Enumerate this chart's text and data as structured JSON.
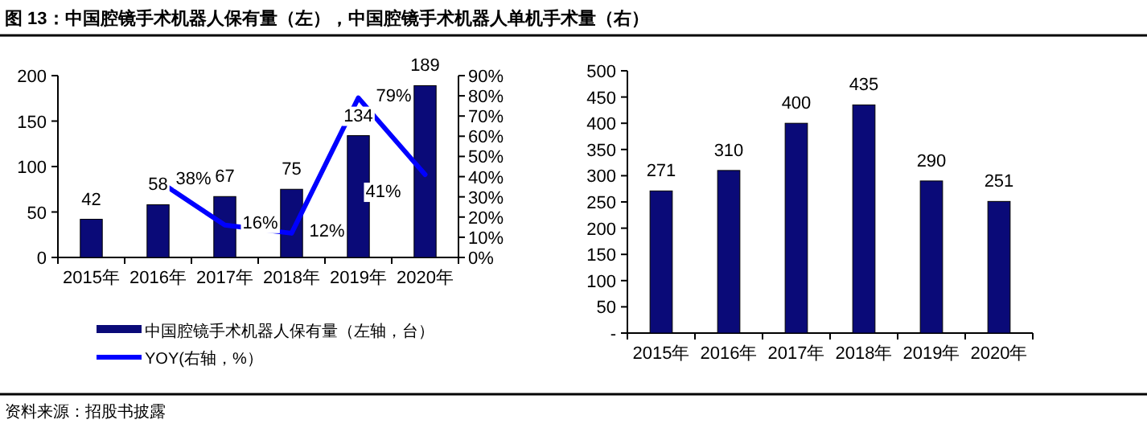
{
  "chart_data": [
    {
      "type": "bar",
      "title": "图 13：中国腔镜手术机器人保有量（左），中国腔镜手术机器人单机手术量（右）",
      "categories": [
        "2015年",
        "2016年",
        "2017年",
        "2018年",
        "2019年",
        "2020年"
      ],
      "series": [
        {
          "name": "中国腔镜手术机器人保有量（左轴，台）",
          "color": "#0a0a78",
          "values": [
            42,
            58,
            67,
            75,
            134,
            189
          ],
          "value_labels": [
            "42",
            "58",
            "67",
            "75",
            "134",
            "189"
          ]
        },
        {
          "name": "YOY(右轴，%）",
          "type": "line",
          "axis": "y2",
          "color": "#0000ff",
          "values": [
            null,
            38,
            16,
            12,
            79,
            41
          ],
          "value_labels": [
            null,
            "38%",
            "16%",
            "12%",
            "79%",
            "41%"
          ]
        }
      ],
      "ylim": [
        0,
        200
      ],
      "yticks": [
        0,
        50,
        100,
        150,
        200
      ],
      "y2lim": [
        0,
        90
      ],
      "y2ticks": [
        {
          "value": 0,
          "label": "0%"
        },
        {
          "value": 10,
          "label": "10%"
        },
        {
          "value": 20,
          "label": "20%"
        },
        {
          "value": 30,
          "label": "30%"
        },
        {
          "value": 40,
          "label": "40%"
        },
        {
          "value": 50,
          "label": "50%"
        },
        {
          "value": 60,
          "label": "60%"
        },
        {
          "value": 70,
          "label": "70%"
        },
        {
          "value": 80,
          "label": "80%"
        },
        {
          "value": 90,
          "label": "90%"
        }
      ],
      "legend": "bottom",
      "annotations": [
        "资料来源：招股书披露"
      ]
    },
    {
      "type": "bar",
      "categories": [
        "2015年",
        "2016年",
        "2017年",
        "2018年",
        "2019年",
        "2020年"
      ],
      "series": [
        {
          "color": "#0a0a78",
          "values": [
            271,
            310,
            400,
            435,
            290,
            251
          ]
        }
      ],
      "ylim": [
        0,
        500
      ],
      "yticks": [
        {
          "value": 0,
          "label": "-"
        },
        50,
        100,
        150,
        200,
        250,
        300,
        350,
        400,
        450,
        500
      ],
      "data_labels": true
    }
  ]
}
